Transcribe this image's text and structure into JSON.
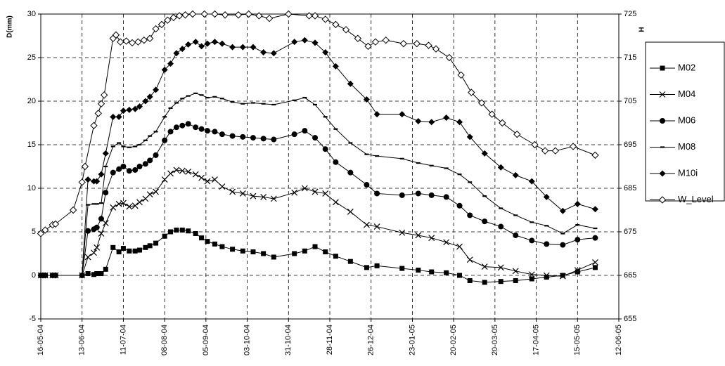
{
  "chart_data": {
    "type": "line",
    "y_label": "D(mm)",
    "y2_label": "H",
    "ylim": [
      -5,
      30
    ],
    "yticks": [
      -5,
      0,
      5,
      10,
      15,
      20,
      25,
      30
    ],
    "y2lim": [
      655,
      725
    ],
    "y2ticks": [
      655,
      665,
      675,
      685,
      695,
      705,
      715,
      725
    ],
    "xlim": [
      "2004-05-16",
      "2005-06-12"
    ],
    "xticks": [
      {
        "value": "2004-05-16",
        "label": "16-05-04"
      },
      {
        "value": "2004-06-13",
        "label": "13-06-04"
      },
      {
        "value": "2004-07-11",
        "label": "11-07-04"
      },
      {
        "value": "2004-08-08",
        "label": "08-08-04"
      },
      {
        "value": "2004-09-05",
        "label": "05-09-04"
      },
      {
        "value": "2004-10-03",
        "label": "03-10-04"
      },
      {
        "value": "2004-10-31",
        "label": "31-10-04"
      },
      {
        "value": "2004-11-28",
        "label": "28-11-04"
      },
      {
        "value": "2004-12-26",
        "label": "26-12-04"
      },
      {
        "value": "2005-01-23",
        "label": "23-01-05"
      },
      {
        "value": "2005-02-20",
        "label": "20-02-05"
      },
      {
        "value": "2005-03-20",
        "label": "20-03-05"
      },
      {
        "value": "2005-04-17",
        "label": "17-04-05"
      },
      {
        "value": "2005-05-15",
        "label": "15-05-05"
      },
      {
        "value": "2005-06-12",
        "label": "12-06-05"
      }
    ],
    "grid": true,
    "legend": "right",
    "x": [
      "2004-05-16",
      "2004-05-19",
      "2004-05-24",
      "2004-05-26",
      "2004-06-13",
      "2004-06-17",
      "2004-06-21",
      "2004-06-23",
      "2004-06-26",
      "2004-06-29",
      "2004-07-04",
      "2004-07-08",
      "2004-07-11",
      "2004-07-15",
      "2004-07-19",
      "2004-07-22",
      "2004-07-26",
      "2004-07-29",
      "2004-08-02",
      "2004-08-08",
      "2004-08-12",
      "2004-08-16",
      "2004-08-20",
      "2004-08-24",
      "2004-08-29",
      "2004-09-02",
      "2004-09-06",
      "2004-09-11",
      "2004-09-16",
      "2004-09-23",
      "2004-09-30",
      "2004-10-07",
      "2004-10-14",
      "2004-10-21",
      "2004-11-04",
      "2004-11-11",
      "2004-11-18",
      "2004-11-25",
      "2004-12-02",
      "2004-12-12",
      "2004-12-23",
      "2004-12-30",
      "2005-01-16",
      "2005-01-27",
      "2005-02-05",
      "2005-02-15",
      "2005-02-24",
      "2005-03-03",
      "2005-03-13",
      "2005-03-24",
      "2005-04-03",
      "2005-04-14",
      "2005-04-24",
      "2005-05-05",
      "2005-05-15",
      "2005-05-27"
    ],
    "series": [
      {
        "name": "M02",
        "color": "#000000",
        "marker": "square",
        "values": [
          0,
          0,
          0,
          0,
          0,
          0.2,
          0.1,
          0.2,
          0.2,
          0.7,
          3.2,
          2.7,
          3.1,
          2.8,
          2.8,
          2.9,
          3.2,
          3.4,
          3.7,
          4.5,
          5.0,
          5.2,
          5.2,
          5.1,
          4.8,
          4.3,
          3.9,
          3.6,
          3.3,
          3.0,
          2.8,
          2.7,
          2.5,
          2.1,
          2.5,
          2.8,
          3.3,
          2.7,
          2.2,
          1.6,
          0.9,
          1.1,
          0.8,
          0.6,
          0.4,
          0.3,
          0,
          -0.6,
          -0.8,
          -0.7,
          -0.6,
          -0.4,
          -0.2,
          0,
          0.4,
          0.9
        ]
      },
      {
        "name": "M04",
        "color": "#000000",
        "marker": "cross",
        "values": [
          0,
          0,
          0,
          0,
          0,
          2.1,
          2.6,
          3.2,
          4.8,
          6,
          7.8,
          8.2,
          8.3,
          7.9,
          8,
          8.4,
          8.8,
          9.3,
          9.6,
          11,
          11.7,
          12.1,
          12,
          11.9,
          11.6,
          11.2,
          10.8,
          11,
          10.2,
          9.6,
          9.4,
          9.1,
          9.0,
          8.8,
          9.5,
          10,
          9.6,
          9.4,
          8.4,
          7.3,
          5.8,
          5.6,
          4.9,
          4.6,
          4.3,
          3.8,
          3.3,
          1.8,
          1.0,
          0.9,
          0.5,
          0.1,
          0,
          -0.1,
          0.6,
          1.5
        ]
      },
      {
        "name": "M06",
        "color": "#000000",
        "marker": "circle",
        "values": [
          0,
          0,
          0,
          0,
          0,
          5.1,
          5.3,
          5.5,
          6.5,
          9.5,
          11.8,
          12.2,
          12.5,
          12,
          12.1,
          12.5,
          12.8,
          13.2,
          13.8,
          15.5,
          16.5,
          17,
          17.2,
          17.4,
          17,
          16.8,
          16.6,
          16.5,
          16.2,
          16,
          15.9,
          15.8,
          15.7,
          15.6,
          16.2,
          16.6,
          15.8,
          14.5,
          13,
          11.8,
          10.4,
          9.4,
          9.2,
          9.4,
          9.2,
          9.0,
          8.0,
          6.9,
          6.2,
          5.6,
          4.6,
          4.0,
          3.6,
          3.5,
          4.1,
          4.3
        ]
      },
      {
        "name": "M08",
        "color": "#000000",
        "marker": "dash",
        "values": [
          0,
          0,
          0,
          0,
          0,
          8.1,
          8.2,
          8.2,
          8.3,
          12.5,
          14.8,
          15.2,
          14.8,
          14.7,
          14.8,
          15,
          15.5,
          16,
          16.5,
          18.2,
          19.2,
          19.8,
          20.3,
          20.6,
          20.9,
          20.7,
          20.4,
          20.5,
          20.3,
          19.9,
          19.7,
          19.8,
          19.7,
          19.6,
          20.1,
          20.4,
          19.6,
          18.2,
          16.8,
          15.2,
          13.9,
          13.7,
          13.4,
          12.9,
          12.6,
          12.3,
          11.6,
          10.7,
          9.1,
          7.7,
          6.9,
          6.1,
          5.7,
          4.8,
          5.8,
          5.4
        ]
      },
      {
        "name": "M10i",
        "color": "#000000",
        "marker": "diamond",
        "values": [
          0,
          0,
          0,
          0,
          0,
          11,
          10.8,
          10.8,
          11.6,
          14,
          18.2,
          18.2,
          18.9,
          19,
          19.1,
          19.4,
          20,
          20.5,
          21.3,
          23.6,
          24.3,
          25.5,
          26,
          26.5,
          26.8,
          26.3,
          26.6,
          26.8,
          26.6,
          26.2,
          26.2,
          26.2,
          25.6,
          25.5,
          26.8,
          27,
          26.7,
          25.6,
          24,
          22,
          20.2,
          18.5,
          18.5,
          17.7,
          17.6,
          18.1,
          17.6,
          15.9,
          14,
          12.4,
          11.5,
          10.8,
          9.0,
          7.4,
          8.2,
          7.6
        ]
      },
      {
        "name": "W_Level",
        "color": "#000000",
        "marker": "open-diamond",
        "axis": "y2",
        "x": [
          "2004-05-16",
          "2004-05-19",
          "2004-05-24",
          "2004-05-26",
          "2004-06-07",
          "2004-06-13",
          "2004-06-15",
          "2004-06-21",
          "2004-06-24",
          "2004-06-26",
          "2004-06-28",
          "2004-07-04",
          "2004-07-06",
          "2004-07-09",
          "2004-07-13",
          "2004-07-17",
          "2004-07-21",
          "2004-07-25",
          "2004-07-29",
          "2004-08-02",
          "2004-08-06",
          "2004-08-10",
          "2004-08-14",
          "2004-08-18",
          "2004-08-22",
          "2004-08-27",
          "2004-09-04",
          "2004-09-11",
          "2004-09-18",
          "2004-09-27",
          "2004-10-04",
          "2004-10-11",
          "2004-10-18",
          "2004-10-31",
          "2004-11-14",
          "2004-11-18",
          "2004-11-25",
          "2004-12-02",
          "2004-12-09",
          "2004-12-17",
          "2004-12-24",
          "2004-12-29",
          "2005-01-05",
          "2005-01-17",
          "2005-01-26",
          "2005-02-03",
          "2005-02-08",
          "2005-02-17",
          "2005-02-25",
          "2005-03-04",
          "2005-03-11",
          "2005-03-18",
          "2005-03-25",
          "2005-04-04",
          "2005-04-16",
          "2005-04-23",
          "2005-04-30",
          "2005-05-12",
          "2005-05-27"
        ],
        "values": [
          674.6,
          675.4,
          676.6,
          676.8,
          680,
          686.4,
          690,
          699.4,
          702.2,
          704.4,
          706.4,
          719.4,
          720.2,
          718.6,
          718.8,
          718.4,
          718.6,
          719,
          719.4,
          721.6,
          722.6,
          723.6,
          724.2,
          724.6,
          724.8,
          725,
          725,
          725,
          724.8,
          724.8,
          725,
          724.6,
          724,
          725,
          724.6,
          724.6,
          723.8,
          722.6,
          721.4,
          719.4,
          717.6,
          718.6,
          719,
          718.2,
          718.2,
          717.8,
          717,
          715,
          711,
          707,
          704.6,
          702,
          700,
          697.4,
          695,
          693.6,
          693.6,
          694.6,
          692.6
        ]
      }
    ]
  }
}
